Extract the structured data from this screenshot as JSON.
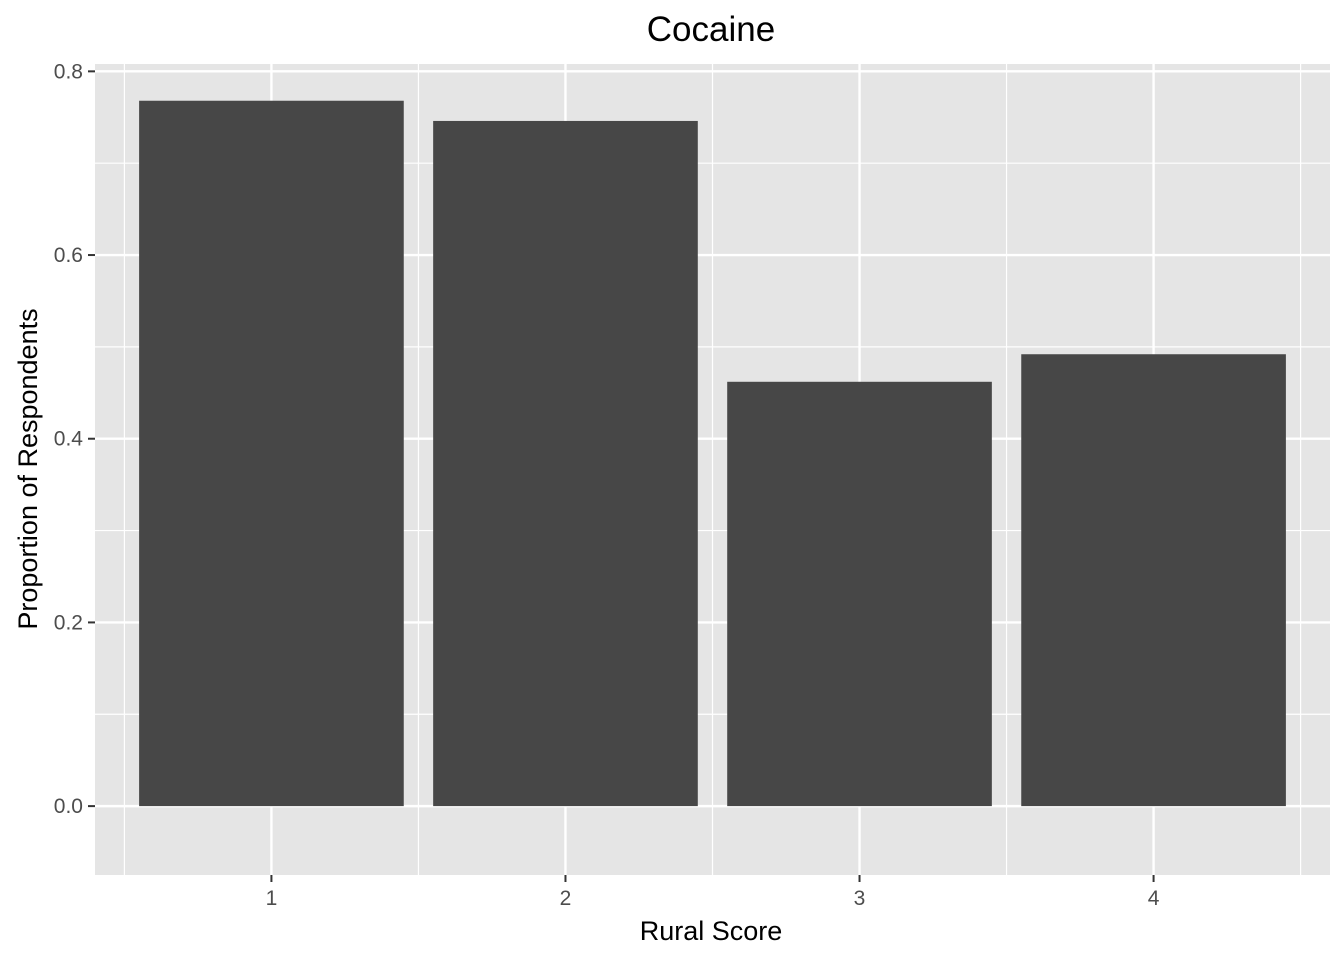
{
  "chart_data": {
    "type": "bar",
    "title": "Cocaine",
    "xlabel": "Rural Score",
    "ylabel": "Proportion of Respondents",
    "categories": [
      "1",
      "2",
      "3",
      "4"
    ],
    "values": [
      0.768,
      0.746,
      0.462,
      0.492
    ],
    "ylim": [
      -0.075,
      0.808
    ],
    "yticks": [
      0.0,
      0.2,
      0.4,
      0.6,
      0.8
    ],
    "ytick_labels": [
      "0.0",
      "0.2",
      "0.4",
      "0.6",
      "0.8"
    ],
    "grid": true,
    "colors": {
      "panel": "#e5e5e5",
      "grid": "#ffffff",
      "bar": "#474747",
      "tick": "#333333"
    }
  }
}
